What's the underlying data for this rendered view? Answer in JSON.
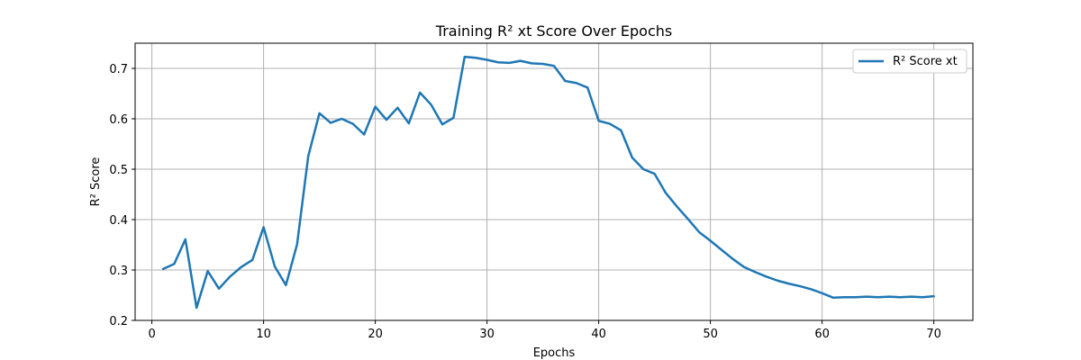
{
  "chart_data": {
    "type": "line",
    "title": "Training R² xt Score Over Epochs",
    "xlabel": "Epochs",
    "ylabel": "R² Score",
    "xlim": [
      -1.5,
      73.5
    ],
    "ylim": [
      0.2,
      0.75
    ],
    "xticks": [
      0,
      10,
      20,
      30,
      40,
      50,
      60,
      70
    ],
    "yticks": [
      0.2,
      0.3,
      0.4,
      0.5,
      0.6,
      0.7
    ],
    "ytick_labels": [
      "0.2",
      "0.3",
      "0.4",
      "0.5",
      "0.6",
      "0.7"
    ],
    "grid": true,
    "legend_position": "upper-right",
    "series": [
      {
        "name": "R² Score xt",
        "color": "#1f77b4",
        "x": [
          1,
          2,
          3,
          4,
          5,
          6,
          7,
          8,
          9,
          10,
          11,
          12,
          13,
          14,
          15,
          16,
          17,
          18,
          19,
          20,
          21,
          22,
          23,
          24,
          25,
          26,
          27,
          28,
          29,
          30,
          31,
          32,
          33,
          34,
          35,
          36,
          37,
          38,
          39,
          40,
          41,
          42,
          43,
          44,
          45,
          46,
          47,
          48,
          49,
          50,
          51,
          52,
          53,
          54,
          55,
          56,
          57,
          58,
          59,
          60,
          61,
          62,
          63,
          64,
          65,
          66,
          67,
          68,
          69,
          70
        ],
        "values": [
          0.302,
          0.312,
          0.361,
          0.225,
          0.298,
          0.263,
          0.287,
          0.306,
          0.32,
          0.385,
          0.307,
          0.27,
          0.351,
          0.526,
          0.611,
          0.592,
          0.6,
          0.59,
          0.569,
          0.624,
          0.598,
          0.622,
          0.591,
          0.652,
          0.628,
          0.589,
          0.602,
          0.723,
          0.721,
          0.717,
          0.712,
          0.711,
          0.715,
          0.71,
          0.709,
          0.705,
          0.675,
          0.671,
          0.662,
          0.596,
          0.59,
          0.577,
          0.523,
          0.5,
          0.491,
          0.453,
          0.426,
          0.401,
          0.375,
          0.358,
          0.34,
          0.322,
          0.306,
          0.296,
          0.287,
          0.279,
          0.273,
          0.268,
          0.262,
          0.254,
          0.245,
          0.246,
          0.246,
          0.247,
          0.246,
          0.247,
          0.246,
          0.247,
          0.246,
          0.248
        ]
      }
    ]
  }
}
